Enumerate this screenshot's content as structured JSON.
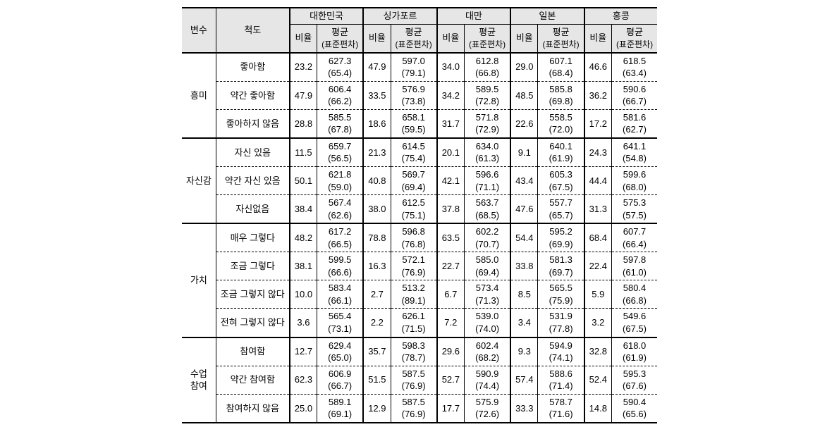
{
  "header": {
    "variable": "변수",
    "scale": "척도",
    "countries": [
      "대한민국",
      "싱가포르",
      "대만",
      "일본",
      "홍콩"
    ],
    "ratio": "비율",
    "avg": "평균",
    "sd": "(표준편차)"
  },
  "groups": [
    {
      "name": "흥미",
      "rows": [
        {
          "scale": "좋아함",
          "vals": [
            {
              "ratio": "23.2",
              "mean": "627.3",
              "sd": "(65.4)"
            },
            {
              "ratio": "47.9",
              "mean": "597.0",
              "sd": "(79.1)"
            },
            {
              "ratio": "34.0",
              "mean": "612.8",
              "sd": "(66.8)"
            },
            {
              "ratio": "29.0",
              "mean": "607.1",
              "sd": "(68.4)"
            },
            {
              "ratio": "46.6",
              "mean": "618.5",
              "sd": "(63.4)"
            }
          ]
        },
        {
          "scale": "약간 좋아함",
          "vals": [
            {
              "ratio": "47.9",
              "mean": "606.4",
              "sd": "(66.2)"
            },
            {
              "ratio": "33.5",
              "mean": "576.9",
              "sd": "(73.8)"
            },
            {
              "ratio": "34.2",
              "mean": "589.5",
              "sd": "(72.8)"
            },
            {
              "ratio": "48.5",
              "mean": "585.8",
              "sd": "(69.8)"
            },
            {
              "ratio": "36.2",
              "mean": "590.6",
              "sd": "(66.7)"
            }
          ]
        },
        {
          "scale": "좋아하지 않음",
          "vals": [
            {
              "ratio": "28.8",
              "mean": "585.5",
              "sd": "(67.8)"
            },
            {
              "ratio": "18.6",
              "mean": "658.1",
              "sd": "(59.5)"
            },
            {
              "ratio": "31.7",
              "mean": "571.8",
              "sd": "(72.9)"
            },
            {
              "ratio": "22.6",
              "mean": "558.5",
              "sd": "(72.0)"
            },
            {
              "ratio": "17.2",
              "mean": "581.6",
              "sd": "(62.7)"
            }
          ]
        }
      ]
    },
    {
      "name": "자신감",
      "rows": [
        {
          "scale": "자신 있음",
          "vals": [
            {
              "ratio": "11.5",
              "mean": "659.7",
              "sd": "(56.5)"
            },
            {
              "ratio": "21.3",
              "mean": "614.5",
              "sd": "(75.4)"
            },
            {
              "ratio": "20.1",
              "mean": "634.0",
              "sd": "(61.3)"
            },
            {
              "ratio": "9.1",
              "mean": "640.1",
              "sd": "(61.9)"
            },
            {
              "ratio": "24.3",
              "mean": "641.1",
              "sd": "(54.8)"
            }
          ]
        },
        {
          "scale": "약간 자신 있음",
          "vals": [
            {
              "ratio": "50.1",
              "mean": "621.8",
              "sd": "(59.0)"
            },
            {
              "ratio": "40.8",
              "mean": "569.7",
              "sd": "(69.4)"
            },
            {
              "ratio": "42.1",
              "mean": "596.6",
              "sd": "(71.1)"
            },
            {
              "ratio": "43.4",
              "mean": "605.3",
              "sd": "(67.5)"
            },
            {
              "ratio": "44.4",
              "mean": "599.6",
              "sd": "(68.0)"
            }
          ]
        },
        {
          "scale": "자신없음",
          "vals": [
            {
              "ratio": "38.4",
              "mean": "567.4",
              "sd": "(62.6)"
            },
            {
              "ratio": "38.0",
              "mean": "612.5",
              "sd": "(75.1)"
            },
            {
              "ratio": "37.8",
              "mean": "563.7",
              "sd": "(68.5)"
            },
            {
              "ratio": "47.6",
              "mean": "557.7",
              "sd": "(65.7)"
            },
            {
              "ratio": "31.3",
              "mean": "575.3",
              "sd": "(57.5)"
            }
          ]
        }
      ]
    },
    {
      "name": "가치",
      "rows": [
        {
          "scale": "매우 그렇다",
          "vals": [
            {
              "ratio": "48.2",
              "mean": "617.2",
              "sd": "(66.5)"
            },
            {
              "ratio": "78.8",
              "mean": "596.8",
              "sd": "(76.8)"
            },
            {
              "ratio": "63.5",
              "mean": "602.2",
              "sd": "(70.7)"
            },
            {
              "ratio": "54.4",
              "mean": "595.2",
              "sd": "(69.9)"
            },
            {
              "ratio": "68.4",
              "mean": "607.7",
              "sd": "(66.4)"
            }
          ]
        },
        {
          "scale": "조금 그렇다",
          "vals": [
            {
              "ratio": "38.1",
              "mean": "599.5",
              "sd": "(66.6)"
            },
            {
              "ratio": "16.3",
              "mean": "572.1",
              "sd": "(76.9)"
            },
            {
              "ratio": "22.7",
              "mean": "585.0",
              "sd": "(69.4)"
            },
            {
              "ratio": "33.8",
              "mean": "581.3",
              "sd": "(69.7)"
            },
            {
              "ratio": "22.4",
              "mean": "597.8",
              "sd": "(61.0)"
            }
          ]
        },
        {
          "scale": "조금 그렇지 않다",
          "vals": [
            {
              "ratio": "10.0",
              "mean": "583.4",
              "sd": "(66.1)"
            },
            {
              "ratio": "2.7",
              "mean": "513.2",
              "sd": "(89.1)"
            },
            {
              "ratio": "6.7",
              "mean": "573.4",
              "sd": "(71.3)"
            },
            {
              "ratio": "8.5",
              "mean": "565.5",
              "sd": "(75.9)"
            },
            {
              "ratio": "5.9",
              "mean": "580.4",
              "sd": "(66.8)"
            }
          ]
        },
        {
          "scale": "전혀 그렇지 않다",
          "vals": [
            {
              "ratio": "3.6",
              "mean": "565.4",
              "sd": "(73.1)"
            },
            {
              "ratio": "2.2",
              "mean": "626.1",
              "sd": "(71.5)"
            },
            {
              "ratio": "7.2",
              "mean": "539.0",
              "sd": "(74.0)"
            },
            {
              "ratio": "3.4",
              "mean": "531.9",
              "sd": "(77.8)"
            },
            {
              "ratio": "3.2",
              "mean": "549.6",
              "sd": "(67.5)"
            }
          ]
        }
      ]
    },
    {
      "name": "수업 참여",
      "rows": [
        {
          "scale": "참여함",
          "vals": [
            {
              "ratio": "12.7",
              "mean": "629.4",
              "sd": "(65.0)"
            },
            {
              "ratio": "35.7",
              "mean": "598.3",
              "sd": "(78.7)"
            },
            {
              "ratio": "29.6",
              "mean": "602.4",
              "sd": "(68.2)"
            },
            {
              "ratio": "9.3",
              "mean": "594.9",
              "sd": "(74.1)"
            },
            {
              "ratio": "32.8",
              "mean": "618.0",
              "sd": "(61.9)"
            }
          ]
        },
        {
          "scale": "약간 참여함",
          "vals": [
            {
              "ratio": "62.3",
              "mean": "606.9",
              "sd": "(66.7)"
            },
            {
              "ratio": "51.5",
              "mean": "587.5",
              "sd": "(76.9)"
            },
            {
              "ratio": "52.7",
              "mean": "590.9",
              "sd": "(74.4)"
            },
            {
              "ratio": "57.4",
              "mean": "588.6",
              "sd": "(71.4)"
            },
            {
              "ratio": "52.4",
              "mean": "595.3",
              "sd": "(67.6)"
            }
          ]
        },
        {
          "scale": "참여하지 않음",
          "vals": [
            {
              "ratio": "25.0",
              "mean": "589.1",
              "sd": "(69.1)"
            },
            {
              "ratio": "12.9",
              "mean": "587.5",
              "sd": "(76.9)"
            },
            {
              "ratio": "17.7",
              "mean": "575.9",
              "sd": "(72.6)"
            },
            {
              "ratio": "33.3",
              "mean": "578.7",
              "sd": "(71.6)"
            },
            {
              "ratio": "14.8",
              "mean": "590.4",
              "sd": "(65.6)"
            }
          ]
        }
      ]
    }
  ]
}
